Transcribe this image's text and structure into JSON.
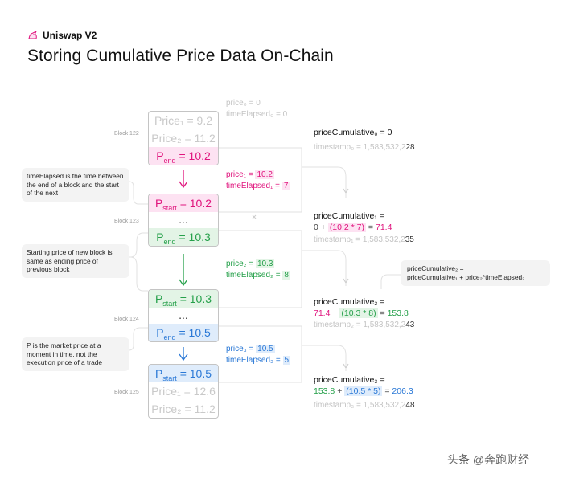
{
  "header": {
    "brand": "Uniswap V2",
    "title": "Storing Cumulative Price Data On-Chain"
  },
  "top": {
    "price0": "price₀ = 0",
    "elapsed0": "timeElapsed₀ = 0"
  },
  "blocks": [
    {
      "label": "Block 122",
      "rows": [
        "Price₁ = 9.2",
        "Price₂ = 11.2"
      ],
      "end_prefix": "P",
      "end_sub": "end",
      "end_value": "= 10.2"
    },
    {
      "label": "Block 123",
      "start_prefix": "P",
      "start_sub": "start",
      "start_value": "= 10.2",
      "dots": "...",
      "end_prefix": "P",
      "end_sub": "end",
      "end_value": "= 10.3"
    },
    {
      "label": "Block 124",
      "start_prefix": "P",
      "start_sub": "start",
      "start_value": "= 10.3",
      "dots": "...",
      "end_prefix": "P",
      "end_sub": "end",
      "end_value": "= 10.5"
    },
    {
      "label": "Block 125",
      "start_prefix": "P",
      "start_sub": "start",
      "start_value": "= 10.5",
      "rows": [
        "Price₁ = 12.6",
        "Price₂ = 11.2"
      ]
    }
  ],
  "notes": [
    "timeElapsed is the time between the end of a block and the start of the next",
    "Starting price of new block is same as ending price of previous block",
    "P is the market price at a moment in time, not the execution price of a trade"
  ],
  "formula_note": {
    "line1": "priceCumulative₂ =",
    "line2": "priceCumulative₁ + price₂*timeElapsed₂"
  },
  "middle": [
    {
      "price_label": "price₁ = ",
      "price_value": "10.2",
      "elapsed_label": "timeElapsed₁ = ",
      "elapsed_value": "7"
    },
    {
      "price_label": "price₂ = ",
      "price_value": "10.3",
      "elapsed_label": "timeElapsed₂ = ",
      "elapsed_value": "8"
    },
    {
      "price_label": "price₃ = ",
      "price_value": "10.5",
      "elapsed_label": "timeElapsed₃ = ",
      "elapsed_value": "5"
    }
  ],
  "cumulative": [
    {
      "label": "priceCumulative₀ = 0",
      "ts_prefix": "timestamp₀ = 1,583,532,2",
      "ts_suffix": "28"
    },
    {
      "label": "priceCumulative₁ =",
      "eq_a": "0 + ",
      "eq_hl": "(10.2 * 7)",
      "eq_b": " = ",
      "eq_result": "71.4",
      "ts_prefix": "timestamp₁ = 1,583,532,2",
      "ts_suffix": "35"
    },
    {
      "label": "priceCumulative₂ =",
      "eq_a": "71.4",
      "eq_plus": " + ",
      "eq_hl": "(10.3 * 8)",
      "eq_b": " = ",
      "eq_result": "153.8",
      "ts_prefix": "timestamp₂ = 1,583,532,2",
      "ts_suffix": "43"
    },
    {
      "label": "priceCumulative₃ =",
      "eq_a": "153.8",
      "eq_plus": " + ",
      "eq_hl": "(10.5 * 5)",
      "eq_b": " = ",
      "eq_result": "206.3",
      "ts_prefix": "timestamp₃ = 1,583,532,2",
      "ts_suffix": "48"
    }
  ],
  "watermark": "头条 @奔跑财经",
  "colors": {
    "pink": "#e0147d",
    "green": "#25a04a",
    "blue": "#2a78d6",
    "gray": "#c4c4c4"
  },
  "icons": {
    "brand": "unicorn-icon",
    "arrow": "arrow-down-icon"
  }
}
